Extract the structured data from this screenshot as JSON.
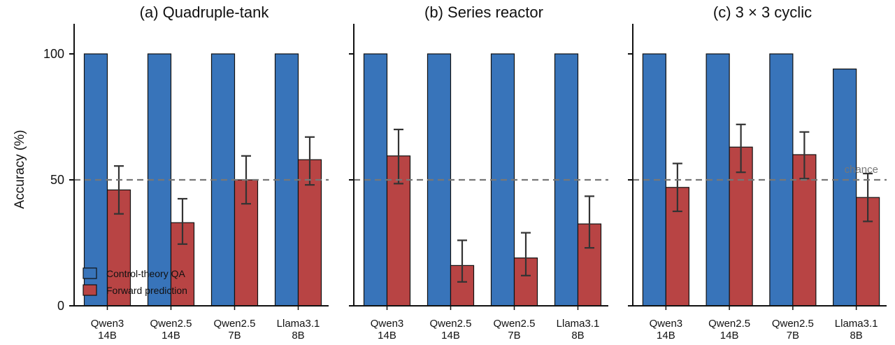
{
  "chart_data": [
    {
      "type": "bar",
      "title": "(a) Quadruple-tank",
      "ylabel": "Accuracy (%)",
      "ylim": [
        0,
        112
      ],
      "yticks": [
        0,
        50,
        100
      ],
      "categories": [
        [
          "Qwen3",
          "14B"
        ],
        [
          "Qwen2.5",
          "14B"
        ],
        [
          "Qwen2.5",
          "7B"
        ],
        [
          "Llama3.1",
          "8B"
        ]
      ],
      "series": [
        {
          "name": "Control-theory QA",
          "color": "#3874BA",
          "values": [
            100,
            100,
            100,
            100
          ]
        },
        {
          "name": "Forward prediction",
          "color": "#B84444",
          "values": [
            46,
            33,
            50,
            58
          ],
          "err_low": [
            36.5,
            24.5,
            40.5,
            48
          ],
          "err_high": [
            55.5,
            42.5,
            59.5,
            67
          ]
        }
      ],
      "reference_line": {
        "y": 50,
        "style": "dashed"
      },
      "legend": {
        "placement": "lower-left"
      }
    },
    {
      "type": "bar",
      "title": "(b) Series reactor",
      "ylim": [
        0,
        112
      ],
      "yticks": [
        0,
        50,
        100
      ],
      "categories": [
        [
          "Qwen3",
          "14B"
        ],
        [
          "Qwen2.5",
          "14B"
        ],
        [
          "Qwen2.5",
          "7B"
        ],
        [
          "Llama3.1",
          "8B"
        ]
      ],
      "series": [
        {
          "name": "Control-theory QA",
          "color": "#3874BA",
          "values": [
            100,
            100,
            100,
            100
          ]
        },
        {
          "name": "Forward prediction",
          "color": "#B84444",
          "values": [
            59.5,
            16,
            19,
            32.5
          ],
          "err_low": [
            48.5,
            9.5,
            12,
            23
          ],
          "err_high": [
            70,
            26,
            29,
            43.5
          ]
        }
      ],
      "reference_line": {
        "y": 50,
        "style": "dashed"
      }
    },
    {
      "type": "bar",
      "title": "(c) 3 × 3 cyclic",
      "ylim": [
        0,
        112
      ],
      "yticks": [
        0,
        50,
        100
      ],
      "categories": [
        [
          "Qwen3",
          "14B"
        ],
        [
          "Qwen2.5",
          "14B"
        ],
        [
          "Qwen2.5",
          "7B"
        ],
        [
          "Llama3.1",
          "8B"
        ]
      ],
      "series": [
        {
          "name": "Control-theory QA",
          "color": "#3874BA",
          "values": [
            100,
            100,
            100,
            94
          ]
        },
        {
          "name": "Forward prediction",
          "color": "#B84444",
          "values": [
            47,
            63,
            60,
            43
          ],
          "err_low": [
            37.5,
            53,
            50.5,
            33.5
          ],
          "err_high": [
            56.5,
            72,
            69,
            52.5
          ]
        }
      ],
      "reference_line": {
        "y": 50,
        "style": "dashed",
        "label": "chance"
      }
    }
  ]
}
